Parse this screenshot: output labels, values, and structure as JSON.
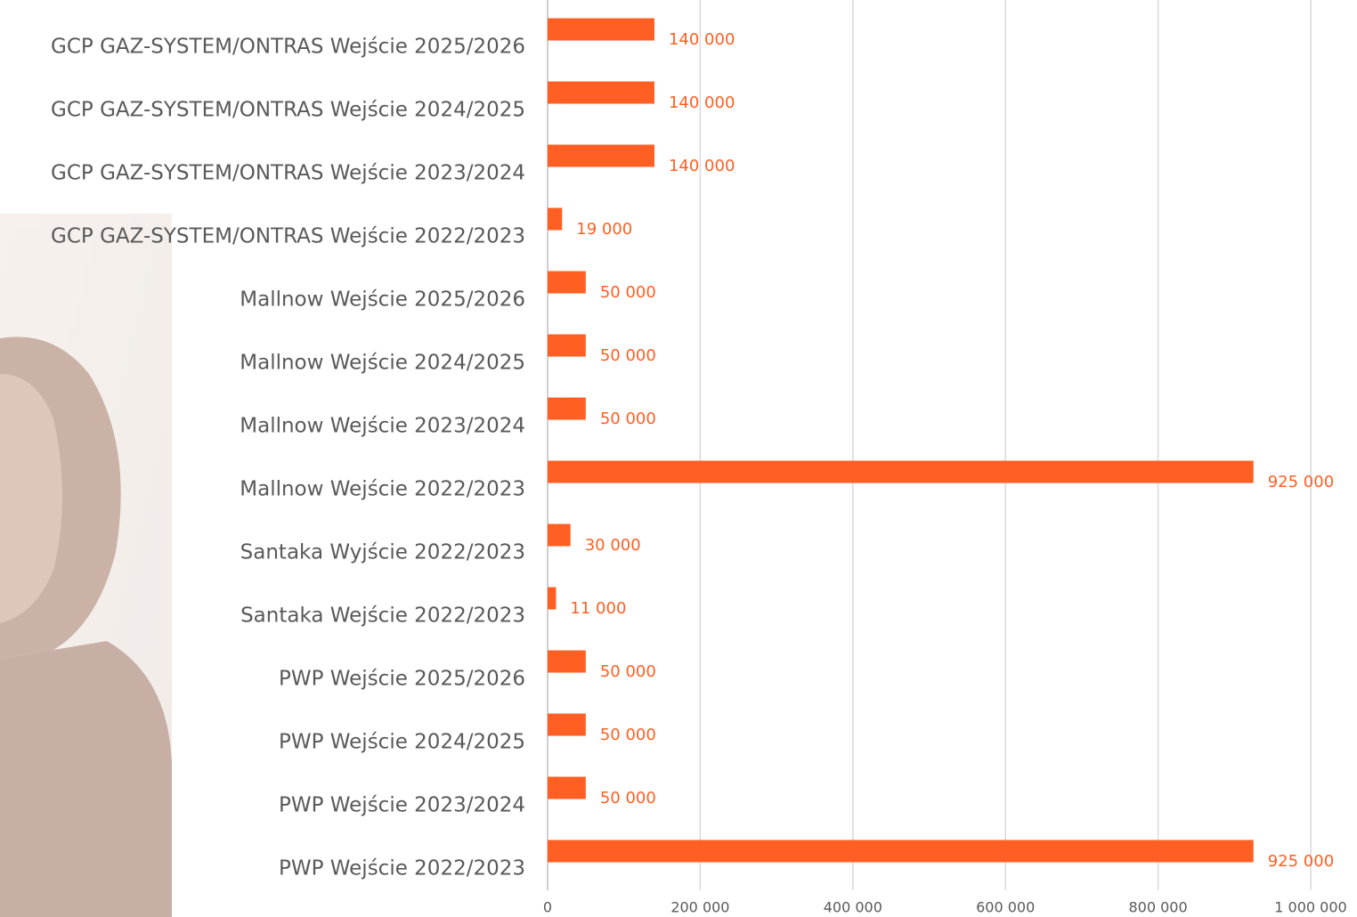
{
  "chart_data": {
    "type": "bar",
    "orientation": "horizontal",
    "categories": [
      "GCP GAZ-SYSTEM/ONTRAS Wejście 2025/2026",
      "GCP GAZ-SYSTEM/ONTRAS Wejście 2024/2025",
      "GCP GAZ-SYSTEM/ONTRAS Wejście 2023/2024",
      "GCP GAZ-SYSTEM/ONTRAS Wejście 2022/2023",
      "Mallnow Wejście 2025/2026",
      "Mallnow Wejście 2024/2025",
      "Mallnow Wejście 2023/2024",
      "Mallnow Wejście 2022/2023",
      "Santaka Wyjście 2022/2023",
      "Santaka Wejście 2022/2023",
      "PWP Wejście 2025/2026",
      "PWP Wejście 2024/2025",
      "PWP Wejście 2023/2024",
      "PWP Wejście 2022/2023"
    ],
    "values": [
      140000,
      140000,
      140000,
      19000,
      50000,
      50000,
      50000,
      925000,
      30000,
      11000,
      50000,
      50000,
      50000,
      925000
    ],
    "value_labels": [
      "140 000",
      "140 000",
      "140 000",
      "19 000",
      "50 000",
      "50 000",
      "50 000",
      "925 000",
      "30 000",
      "11 000",
      "50 000",
      "50 000",
      "50 000",
      "925 000"
    ],
    "color": "#ff5f22",
    "xlim": [
      0,
      1000000
    ],
    "xticks": [
      0,
      {
        "value": 200000,
        "label": "200 000"
      },
      {
        "value": 400000,
        "label": "400 000"
      },
      {
        "value": 600000,
        "label": "600 000"
      },
      {
        "value": 800000,
        "label": "800 000"
      },
      {
        "value": 1000000,
        "label": "1 000 000"
      }
    ],
    "grid": true
  }
}
